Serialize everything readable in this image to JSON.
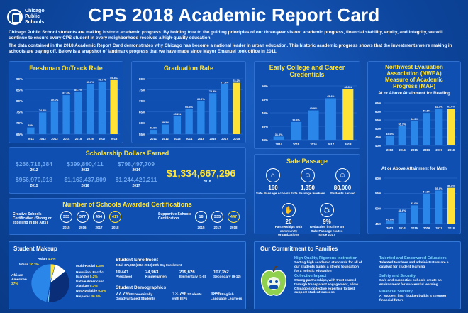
{
  "header": {
    "logo_line1": "Chicago",
    "logo_line2": "Public",
    "logo_line3": "Schools",
    "title": "CPS 2018 Academic Report Card",
    "intro1": "Chicago Public School students are making historic academic progress. By holding true to the guiding principles of our three-year vision: academic progress, financial stability, equity, and integrity, we will continue to ensure every CPS student in every neighborhood receives a high-quality education.",
    "intro2": "The data contained in the 2018 Academic Report Card demonstrates why Chicago has become a national leader in urban education. This historic academic progress shows that the investments we're making in schools are paying off. Below is a snapshot of landmark progress that we have made since Mayor Emanuel took office in 2011."
  },
  "chart_data": [
    {
      "type": "bar",
      "title": "Freshman OnTrack Rate",
      "categories": [
        "2011",
        "2012",
        "2013",
        "2014",
        "2015",
        "2016",
        "2017",
        "2018"
      ],
      "values": [
        68.0,
        74.8,
        79.6,
        82.6,
        84.1,
        87.6,
        88.7,
        89.4
      ],
      "labels": [
        "68%",
        "74.8%",
        "79.6%",
        "82.6%",
        "84.1%",
        "87.6%",
        "88.7%",
        "89.4%"
      ],
      "ylim": [
        65,
        90
      ],
      "yticks": [
        "65%",
        "70%",
        "75%",
        "80%",
        "85%",
        "90%"
      ],
      "ytick_values": [
        65,
        70,
        75,
        80,
        85,
        90
      ],
      "highlight_color": "#ffe437",
      "bar_color": "#2a86e8"
    },
    {
      "type": "bar",
      "title": "Graduation Rate",
      "categories": [
        "2011",
        "2012",
        "2013",
        "2014",
        "2015",
        "2016",
        "2017",
        "2018"
      ],
      "values": [
        56.9,
        59.3,
        63.2,
        66.3,
        69.9,
        73.5,
        77.5,
        78.2
      ],
      "labels": [
        "56.9%",
        "59.3%",
        "63.2%",
        "66.3%",
        "69.9%",
        "73.5%",
        "77.5%",
        "78.2%"
      ],
      "ylim": [
        55,
        80
      ],
      "yticks": [
        "55%",
        "60%",
        "65%",
        "70%",
        "75%",
        "80%"
      ],
      "ytick_values": [
        55,
        60,
        65,
        70,
        75,
        80
      ],
      "highlight_color": "#ffe437",
      "bar_color": "#2a86e8"
    },
    {
      "type": "bar",
      "title": "Early College and Career Credentials",
      "categories": [
        "2014",
        "2015",
        "2016",
        "2017",
        "2018"
      ],
      "values": [
        31.2,
        36.6,
        40.9,
        45.4,
        48.8
      ],
      "labels": [
        "31.2%",
        "36.6%",
        "40.9%",
        "45.4%",
        "48.8%"
      ],
      "ylim": [
        30,
        50
      ],
      "yticks": [
        "30%",
        "35%",
        "40%",
        "45%",
        "50%"
      ],
      "ytick_values": [
        30,
        35,
        40,
        45,
        50
      ],
      "highlight_color": "#ffe437",
      "bar_color": "#2a86e8"
    },
    {
      "type": "bar",
      "title": "At or Above Attainment for Reading",
      "categories": [
        "2013",
        "2014",
        "2015",
        "2016",
        "2017",
        "2018"
      ],
      "values": [
        45.6,
        51.3,
        54.3,
        59.1,
        61.4,
        61.6
      ],
      "labels": [
        "45.6%",
        "51.3%",
        "54.3%",
        "59.1%",
        "61.4%",
        "61.6%"
      ],
      "ylim": [
        40,
        65
      ],
      "yticks": [
        "40%",
        "45%",
        "50%",
        "55%",
        "60%",
        "65%"
      ],
      "ytick_values": [
        40,
        45,
        50,
        55,
        60,
        65
      ],
      "highlight_color": "#ffe437",
      "bar_color": "#2a86e8"
    },
    {
      "type": "bar",
      "title": "At or Above Attainment for Math",
      "categories": [
        "2013",
        "2014",
        "2015",
        "2016",
        "2017",
        "2018"
      ],
      "values": [
        45.7,
        48.6,
        51.0,
        54.8,
        55.9,
        56.8
      ],
      "labels": [
        "45.7%",
        "48.6%",
        "51.0%",
        "54.8%",
        "55.9%",
        "56.8%"
      ],
      "ylim": [
        45,
        60
      ],
      "yticks": [
        "45%",
        "50%",
        "55%",
        "60%"
      ],
      "ytick_values": [
        45,
        50,
        55,
        60
      ],
      "highlight_color": "#ffe437",
      "bar_color": "#2a86e8"
    }
  ],
  "nwea": {
    "title_l1": "Northwest Evaluation",
    "title_l2": "Association (NWEA)",
    "title_l3": "Measure of Academic",
    "title_l4": "Progress (MAP)"
  },
  "scholarship": {
    "title": "Scholarship Dollars Earned",
    "items": [
      {
        "value": "$266,718,384",
        "year": "2012"
      },
      {
        "value": "$399,890,411",
        "year": "2013"
      },
      {
        "value": "$798,497,709",
        "year": "2014"
      },
      {
        "value": "$956,970,918",
        "year": "2015"
      },
      {
        "value": "$1,163,437,809",
        "year": "2016"
      },
      {
        "value": "$1,244,420,211",
        "year": "2017"
      }
    ],
    "total": "$1,334,667,296",
    "total_year": "2018"
  },
  "safe_passage": {
    "title": "Safe Passage",
    "items": [
      {
        "icon": "school-icon",
        "value": "160",
        "label": "Safe Passage schools"
      },
      {
        "icon": "workers-icon",
        "value": "1,350",
        "label": "Safe Passage workers"
      },
      {
        "icon": "students-icon",
        "value": "80,000",
        "label": "Students served"
      },
      {
        "icon": "partners-icon",
        "value": "20",
        "label": "Partnerships with community organizations"
      },
      {
        "icon": "crime-icon",
        "value": "9%",
        "label": "Reduction in crime on Safe Passage routes since 2017"
      }
    ]
  },
  "certifications": {
    "title": "Number of Schools Awarded Certifications",
    "creative_label": "Creative Schools Certification (Strong or excelling in the Arts)",
    "creative": [
      {
        "value": "333",
        "year": "2015"
      },
      {
        "value": "377",
        "year": "2016"
      },
      {
        "value": "454",
        "year": "2017"
      },
      {
        "value": "417",
        "year": "2018"
      }
    ],
    "supportive_label": "Supportive Schools Certification",
    "supportive": [
      {
        "value": "18",
        "year": "2015"
      },
      {
        "value": "335",
        "year": "2017"
      },
      {
        "value": "447",
        "year": "2018"
      }
    ]
  },
  "student_makeup": {
    "title": "Student Makeup",
    "segments": [
      {
        "label": "Asian",
        "value": "4.1%",
        "pct": 4.1,
        "color": "#ffe437"
      },
      {
        "label": "White",
        "value": "10.2%",
        "pct": 10.2,
        "color": "#ffffff"
      },
      {
        "label": "African American",
        "value": "37%",
        "pct": 37.0,
        "color": "#0a2f78"
      },
      {
        "label": "Multi-Racial",
        "value": "1.3%",
        "pct": 1.3,
        "color": "#7ed7ff"
      },
      {
        "label": "Hawaiian/ Pacific Islander",
        "value": "0.2%",
        "pct": 0.2,
        "color": "#b0e0ff"
      },
      {
        "label": "Native American/ Alaskan",
        "value": "0.3%",
        "pct": 0.3,
        "color": "#e0a0ff"
      },
      {
        "label": "Not Available",
        "value": "0.3%",
        "pct": 0.3,
        "color": "#aaaaaa"
      },
      {
        "label": "Hispanic",
        "value": "46.6%",
        "pct": 46.6,
        "color": "#2a86e8"
      }
    ],
    "enrollment_title": "Student Enrollment",
    "enrollment_sub": "Total: 371,382 (2017-2018) 20th Day Enrollment",
    "enrollment": [
      {
        "value": "19,441",
        "label": "Preschool"
      },
      {
        "value": "24,963",
        "label": "Kindergarten"
      },
      {
        "value": "219,626",
        "label": "Elementary (1-8)"
      },
      {
        "value": "107,352",
        "label": "Secondary (9-12)"
      }
    ],
    "demographics_title": "Student Demographics",
    "demographics": [
      {
        "value": "77.7%",
        "label": "Economically Disadvantaged Students"
      },
      {
        "value": "13.7%",
        "label": "Students with IEPs"
      },
      {
        "value": "18%",
        "label": "English Language Learners"
      }
    ]
  },
  "commitment": {
    "title": "Our Commitment to Families",
    "items": [
      {
        "head": "High Quality, Rigorous Instruction",
        "body": "Setting high academic standards for all of our students builds a strong foundation for a holistic education"
      },
      {
        "head": "Collective Impact",
        "body": "Strong partnerships, with trust earned through transparent engagement, allow Chicago's collective expertise to best support student success"
      },
      {
        "head": "Talented and Empowered Educators",
        "body": "Talented teachers and administrators are a catalyst for student learning"
      },
      {
        "head": "Safety and Security",
        "body": "Safe and supportive schools create an environment for successful learning"
      },
      {
        "head": "Financial Stability",
        "body": "A \"student first\" budget builds a stronger financial future"
      }
    ]
  }
}
